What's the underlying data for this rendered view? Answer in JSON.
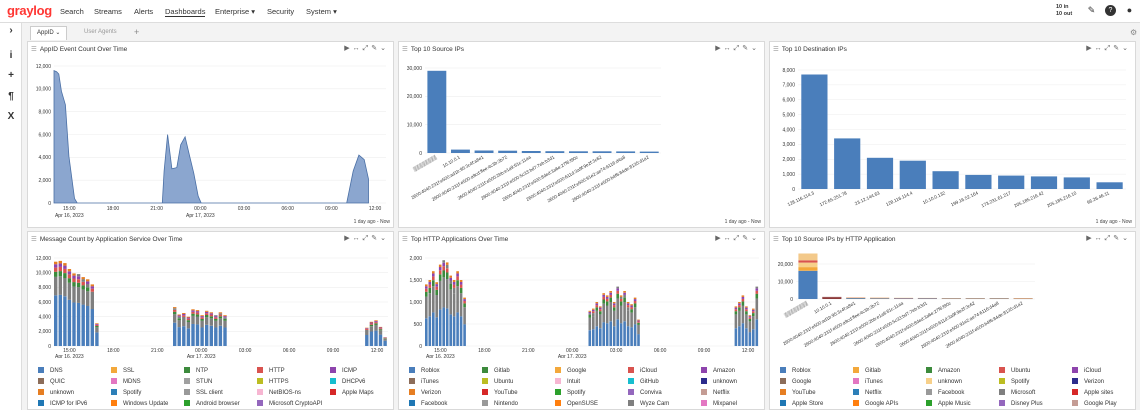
{
  "nav": {
    "logo": "graylog",
    "links": [
      {
        "label": "Search"
      },
      {
        "label": "Streams"
      },
      {
        "label": "Alerts"
      },
      {
        "label": "Dashboards",
        "active": true
      },
      {
        "label": "Enterprise ▾"
      },
      {
        "label": "Security"
      },
      {
        "label": "System ▾"
      }
    ],
    "throughput_in": "10 in",
    "throughput_out": "10 out"
  },
  "tabs": [
    {
      "label": "AppID",
      "active": true
    },
    {
      "label": "User Agents"
    }
  ],
  "add_tab": "+",
  "widgets": [
    {
      "title": "AppID Event Count Over Time",
      "footer": "1 day ago - Now"
    },
    {
      "title": "Top 10 Source IPs",
      "footer": "1 day ago - Now"
    },
    {
      "title": "Top 10 Destination IPs",
      "footer": "1 day ago - Now"
    },
    {
      "title": "Message Count by Application Service Over Time"
    },
    {
      "title": "Top HTTP Applications Over Time"
    },
    {
      "title": "Top 10 Source IPs by HTTP Application"
    }
  ],
  "chart_data": [
    {
      "type": "area",
      "x": [
        "15:00",
        "18:00",
        "21:00",
        "00:00",
        "03:00",
        "06:00",
        "09:00",
        "12:00"
      ],
      "x_sub": [
        "Apr 16, 2023",
        "Apr 17, 2023"
      ],
      "ylim": [
        0,
        12000
      ],
      "yticks": [
        0,
        2000,
        4000,
        6000,
        8000,
        10000,
        12000
      ],
      "color": "#8ba6cf",
      "points": [
        [
          0,
          11600
        ],
        [
          0.06,
          11500
        ],
        [
          0.11,
          11300
        ],
        [
          0.17,
          9800
        ],
        [
          0.26,
          8600
        ],
        [
          0.34,
          4100
        ],
        [
          0.47,
          400
        ],
        [
          0.53,
          0
        ],
        [
          2.48,
          0
        ],
        [
          2.52,
          2800
        ],
        [
          2.6,
          6000
        ],
        [
          2.7,
          3000
        ],
        [
          2.81,
          3100
        ],
        [
          2.9,
          5100
        ],
        [
          3.0,
          5800
        ],
        [
          3.1,
          4200
        ],
        [
          3.2,
          2600
        ],
        [
          3.3,
          600
        ],
        [
          3.37,
          0
        ],
        [
          6.7,
          0
        ],
        [
          6.85,
          2800
        ],
        [
          6.98,
          4200
        ],
        [
          7.1,
          3800
        ],
        [
          7.2,
          2100
        ]
      ]
    },
    {
      "type": "bar",
      "ylim": [
        0,
        30000
      ],
      "yticks": [
        0,
        10000,
        20000,
        30000
      ],
      "values": [
        29000,
        1200,
        900,
        800,
        700,
        650,
        600,
        600,
        550,
        500
      ],
      "categories": [
        "▒▒▒▒▒▒▒▒",
        "10.10.0.1",
        "2600:4040:231f:e500:ad1b:95:3c4f:a8e1",
        "2600:4040:231f:e500:a9cd:ffee:4c3b:3b72",
        "2600:4040:231f:e500:2bb:e1a9:61c:11aa",
        "2600:4040:231f:e500:5c33:bd7:7eb:b3d1",
        "2600:4040:231f:e500:8ded:3a6e:27f6:f90c",
        "2600:4040:231f:e500:611d:3a9f:9e2f:3c62",
        "2600:4040:231f:e500:91e2:ae74:6116:d4a8",
        "2600:4040:231f:e500:b4f6:84de:8135:d1a2"
      ]
    },
    {
      "type": "bar",
      "ylim": [
        0,
        8000
      ],
      "yticks": [
        0,
        1000,
        2000,
        3000,
        4000,
        5000,
        6000,
        7000,
        8000
      ],
      "values": [
        7700,
        3400,
        2100,
        1900,
        1200,
        950,
        900,
        850,
        780,
        450
      ],
      "categories": [
        "128.116.114.3",
        "172.65.251.78",
        "23.12.144.63",
        "128.116.114.4",
        "10.10.0.132",
        "199.16.52.164",
        "173.231.61.217",
        "205.185.216.42",
        "205.185.216.10",
        "96.26.46.11"
      ]
    },
    {
      "type": "stacked_bar",
      "x": [
        "15:00",
        "18:00",
        "21:00",
        "00:00",
        "03:00",
        "06:00",
        "09:00",
        "12:00"
      ],
      "x_sub": [
        "Apr 16, 2023",
        "Apr 17, 2023"
      ],
      "ylim": [
        0,
        12000
      ],
      "yticks": [
        0,
        2000,
        4000,
        6000,
        8000,
        10000,
        12000
      ],
      "totals": [
        11500,
        11600,
        11300,
        10500,
        9900,
        9800,
        9400,
        9100,
        8400,
        3100,
        0,
        0,
        0,
        0,
        0,
        0,
        0,
        0,
        0,
        0,
        0,
        0,
        0,
        0,
        0,
        0,
        5300,
        4300,
        4500,
        4000,
        5000,
        4900,
        4200,
        4800,
        4600,
        4200,
        4600,
        4200,
        0,
        0,
        0,
        0,
        0,
        0,
        0,
        0,
        0,
        0,
        0,
        0,
        0,
        0,
        0,
        0,
        0,
        0,
        0,
        0,
        0,
        0,
        0,
        0,
        0,
        0,
        0,
        0,
        0,
        0,
        2500,
        3300,
        3500,
        2600,
        1200
      ]
    },
    {
      "type": "stacked_bar",
      "x": [
        "15:00",
        "18:00",
        "21:00",
        "00:00",
        "03:00",
        "06:00",
        "09:00",
        "12:00"
      ],
      "x_sub": [
        "Apr 16, 2023",
        "Apr 17, 2023"
      ],
      "ylim": [
        0,
        2000
      ],
      "yticks": [
        0,
        500,
        1000,
        1500,
        2000
      ],
      "totals": [
        1400,
        1500,
        1700,
        1450,
        1850,
        1950,
        1900,
        1600,
        1500,
        1700,
        1500,
        1100,
        0,
        0,
        0,
        0,
        0,
        0,
        0,
        0,
        0,
        0,
        0,
        0,
        0,
        0,
        0,
        0,
        0,
        0,
        0,
        0,
        0,
        0,
        0,
        0,
        0,
        0,
        0,
        0,
        0,
        0,
        0,
        0,
        0,
        0,
        0,
        800,
        850,
        1000,
        900,
        1200,
        1150,
        1250,
        1000,
        1350,
        1150,
        1250,
        1000,
        950,
        1100,
        600,
        0,
        0,
        0,
        0,
        0,
        0,
        0,
        0,
        0,
        0,
        0,
        0,
        0,
        0,
        0,
        0,
        0,
        0,
        0,
        0,
        0,
        0,
        0,
        0,
        0,
        0,
        0,
        900,
        1000,
        1150,
        900,
        700,
        850,
        1350
      ]
    },
    {
      "type": "stacked_bar",
      "ylim": [
        0,
        20000
      ],
      "yticks": [
        0,
        10000,
        20000
      ],
      "totals": [
        26000,
        1200,
        900,
        800,
        700,
        650,
        600,
        600,
        550,
        500
      ],
      "categories": [
        "▒▒▒▒▒▒▒▒",
        "10.10.0.1",
        "2600:4040:231f:e500:ad1b:95:3c4f:a8e1",
        "2600:4040:231f:e500:a9cd:ffee:4c3b:3b72",
        "2600:4040:231f:e500:2bb:e1a9:61c:11aa",
        "2600:4040:231f:e500:5c33:bd7:7eb:b3d1",
        "2600:4040:231f:e500:8ded:3a6e:27f6:f90c",
        "2600:4040:231f:e500:611d:3a9f:9e2f:3c62",
        "2600:4040:231f:e500:91e2:ae74:6116:d4a8",
        "2600:4040:231f:e500:b4f6:84de:8135:d1a2"
      ]
    }
  ],
  "legends": [
    [
      {
        "label": "DNS",
        "color": "#4a7ebb"
      },
      {
        "label": "SSL",
        "color": "#f3a83b"
      },
      {
        "label": "NTP",
        "color": "#3c8a3c"
      },
      {
        "label": "HTTP",
        "color": "#d9534f"
      },
      {
        "label": "ICMP",
        "color": "#8e44ad"
      },
      {
        "label": "QUIC",
        "color": "#8c6d5a"
      },
      {
        "label": "MDNS",
        "color": "#e377c2"
      },
      {
        "label": "STUN",
        "color": "#a0a0a0"
      },
      {
        "label": "HTTPS",
        "color": "#bcbd22"
      },
      {
        "label": "DHCPv6",
        "color": "#17becf"
      },
      {
        "label": "unknown",
        "color": "#e67e22"
      },
      {
        "label": "Spotify",
        "color": "#2c7fb8"
      },
      {
        "label": "SSL client",
        "color": "#999999"
      },
      {
        "label": "NetBIOS-ns",
        "color": "#f7b6d2"
      },
      {
        "label": "Apple Maps",
        "color": "#d62728"
      },
      {
        "label": "ICMP for IPv6",
        "color": "#1f77b4"
      },
      {
        "label": "Windows Update",
        "color": "#ff7f0e"
      },
      {
        "label": "Android browser",
        "color": "#2ca02c"
      },
      {
        "label": "Microsoft CryptoAPI",
        "color": "#9467bd"
      }
    ],
    [
      {
        "label": "Roblox",
        "color": "#4a7ebb"
      },
      {
        "label": "Gitlab",
        "color": "#3c8a3c"
      },
      {
        "label": "Google",
        "color": "#f3a83b"
      },
      {
        "label": "iCloud",
        "color": "#d9534f"
      },
      {
        "label": "Amazon",
        "color": "#8e44ad"
      },
      {
        "label": "iTunes",
        "color": "#8c6d5a"
      },
      {
        "label": "Ubuntu",
        "color": "#bcbd22"
      },
      {
        "label": "Intuit",
        "color": "#f7b6d2"
      },
      {
        "label": "GitHub",
        "color": "#17becf"
      },
      {
        "label": "unknown",
        "color": "#2c2c8c"
      },
      {
        "label": "Verizon",
        "color": "#e67e22"
      },
      {
        "label": "YouTube",
        "color": "#d62728"
      },
      {
        "label": "Spotify",
        "color": "#2ca02c"
      },
      {
        "label": "Conviva",
        "color": "#9467bd"
      },
      {
        "label": "Netflix",
        "color": "#c49c94"
      },
      {
        "label": "Facebook",
        "color": "#1f77b4"
      },
      {
        "label": "Nintendo",
        "color": "#999999"
      },
      {
        "label": "OpenSUSE",
        "color": "#ff7f0e"
      },
      {
        "label": "Wyze Cam",
        "color": "#7f7f7f"
      },
      {
        "label": "Mixpanel",
        "color": "#e377c2"
      }
    ],
    [
      {
        "label": "Roblox",
        "color": "#4a7ebb"
      },
      {
        "label": "Gitlab",
        "color": "#f3a83b"
      },
      {
        "label": "Amazon",
        "color": "#3c8a3c"
      },
      {
        "label": "Ubuntu",
        "color": "#d9534f"
      },
      {
        "label": "iCloud",
        "color": "#8e44ad"
      },
      {
        "label": "Google",
        "color": "#8c6d5a"
      },
      {
        "label": "iTunes",
        "color": "#e377c2"
      },
      {
        "label": "unknown",
        "color": "#f7d08a"
      },
      {
        "label": "Spotify",
        "color": "#bcbd22"
      },
      {
        "label": "Verizon",
        "color": "#2c2c8c"
      },
      {
        "label": "YouTube",
        "color": "#e67e22"
      },
      {
        "label": "Netflix",
        "color": "#2c7fb8"
      },
      {
        "label": "Facebook",
        "color": "#999999"
      },
      {
        "label": "Microsoft",
        "color": "#7f7f7f"
      },
      {
        "label": "Apple sites",
        "color": "#d62728"
      },
      {
        "label": "Apple Store",
        "color": "#1f77b4"
      },
      {
        "label": "Google APIs",
        "color": "#ff7f0e"
      },
      {
        "label": "Apple Music",
        "color": "#2ca02c"
      },
      {
        "label": "Disney Plus",
        "color": "#9467bd"
      },
      {
        "label": "Google Play",
        "color": "#c49c94"
      }
    ]
  ]
}
